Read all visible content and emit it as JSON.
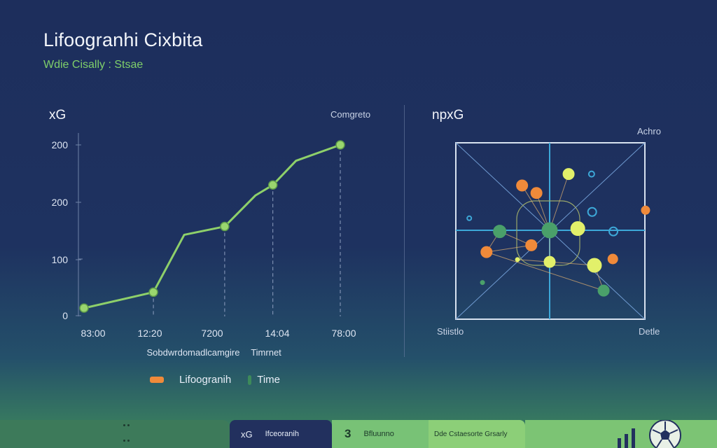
{
  "header": {
    "title": "Lifoogranhi Cixbita",
    "subtitle": "Wdie Cisally : Stsae"
  },
  "colors": {
    "line": "#8ed06a",
    "point_fill": "#9ad66e",
    "grid": "#6f82a6",
    "orange": "#f08a3a",
    "yellow": "#e2f06a",
    "green": "#4aa06a",
    "cyan": "#3da8d8",
    "legend_orange": "#f08a3a",
    "legend_green": "#3d8a5a"
  },
  "chart_data": [
    {
      "type": "line",
      "title": "xG",
      "corner_label": "Comgreto",
      "xlabel": "Sobdwrdomadlcamgire",
      "xlabel2": "Timrnet",
      "x_ticks": [
        "83:00",
        "12:20",
        "7200",
        "14:04",
        "78:00"
      ],
      "y_ticks": [
        "0",
        "100",
        "200",
        "200"
      ],
      "ylim": [
        0,
        250
      ],
      "series": [
        {
          "x": [
            0.0,
            0.36,
            0.52,
            0.73,
            0.89,
            0.98,
            1.1,
            1.33
          ],
          "y": [
            12,
            35,
            118,
            130,
            175,
            190,
            225,
            248
          ]
        }
      ]
    },
    {
      "type": "scatter",
      "title": "npxG",
      "corner_top": "Achro",
      "corner_bottom_left": "Stiistlo",
      "corner_bottom_right": "Detle",
      "points": [
        {
          "x": -0.48,
          "y": 0.78,
          "c": "orange",
          "s": 8
        },
        {
          "x": -0.23,
          "y": 0.65,
          "c": "orange",
          "s": 8
        },
        {
          "x": 0.33,
          "y": 0.98,
          "c": "yellow",
          "s": 8
        },
        {
          "x": 0.73,
          "y": 0.98,
          "c": "cyan",
          "s": 4
        },
        {
          "x": -1.4,
          "y": 0.21,
          "c": "cyan",
          "s": 3
        },
        {
          "x": 0.74,
          "y": 0.32,
          "c": "cyan",
          "s": 6
        },
        {
          "x": 1.67,
          "y": 0.35,
          "c": "orange",
          "s": 6
        },
        {
          "x": -0.87,
          "y": -0.02,
          "c": "green",
          "s": 9
        },
        {
          "x": 0.0,
          "y": 0.0,
          "c": "green",
          "s": 11
        },
        {
          "x": 0.49,
          "y": 0.03,
          "c": "yellow",
          "s": 10
        },
        {
          "x": 1.11,
          "y": -0.02,
          "c": "cyan",
          "s": 6
        },
        {
          "x": -0.32,
          "y": -0.26,
          "c": "orange",
          "s": 8
        },
        {
          "x": -1.1,
          "y": -0.38,
          "c": "orange",
          "s": 8
        },
        {
          "x": -0.56,
          "y": -0.51,
          "c": "yellow",
          "s": 3
        },
        {
          "x": 0.0,
          "y": -0.55,
          "c": "yellow",
          "s": 8
        },
        {
          "x": 0.78,
          "y": -0.61,
          "c": "yellow",
          "s": 10
        },
        {
          "x": 1.1,
          "y": -0.5,
          "c": "orange",
          "s": 7
        },
        {
          "x": 0.94,
          "y": -1.05,
          "c": "green",
          "s": 8
        },
        {
          "x": -1.17,
          "y": -0.91,
          "c": "green",
          "s": 3
        }
      ]
    }
  ],
  "legend": [
    {
      "label": "Lifoogranih",
      "color": "legend_orange"
    },
    {
      "label": "Time",
      "color": "legend_green"
    }
  ],
  "bottom_bar": {
    "seg1_label": "xG",
    "seg1_text": "Ifceoranih",
    "seg2_number": "3",
    "seg2_text": "Bfluunno",
    "seg3_text": "Dde Cstaesorte Grsarly"
  }
}
